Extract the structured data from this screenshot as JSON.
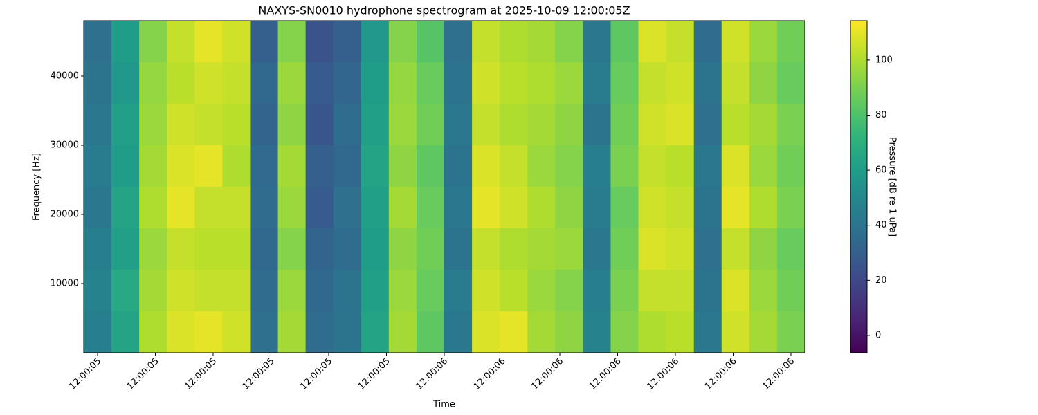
{
  "chart_data": {
    "type": "heatmap",
    "title": "NAXYS-SN0010 hydrophone spectrogram at 2025-10-09 12:00:05Z",
    "x_label": "Time",
    "y_label": "Frequency [Hz]",
    "xtick_labels": [
      "12:00:05",
      "12:00:05",
      "12:00:05",
      "12:00:05",
      "12:00:05",
      "12:00:05",
      "12:00:06",
      "12:00:06",
      "12:00:06",
      "12:00:06",
      "12:00:06",
      "12:00:06",
      "12:00:06"
    ],
    "ylim": [
      0,
      48000
    ],
    "yticks": [
      10000,
      20000,
      30000,
      40000
    ],
    "colormap": "viridis",
    "clim": [
      -6.3,
      114.3
    ],
    "cticks": [
      0,
      20,
      40,
      60,
      80,
      100
    ],
    "colorbar_label": "Pressure [dB re 1 uPa]",
    "values": [
      [
        38,
        60,
        92,
        104,
        110,
        106,
        30,
        92,
        25,
        30,
        58,
        92,
        82,
        38,
        104,
        100,
        98,
        92,
        42,
        84,
        108,
        104,
        36,
        106,
        96,
        88
      ],
      [
        40,
        58,
        95,
        102,
        106,
        104,
        34,
        96,
        28,
        33,
        60,
        95,
        86,
        40,
        106,
        102,
        100,
        96,
        44,
        86,
        104,
        106,
        40,
        104,
        94,
        86
      ],
      [
        42,
        62,
        96,
        106,
        104,
        102,
        32,
        94,
        26,
        36,
        62,
        96,
        88,
        42,
        104,
        100,
        98,
        94,
        40,
        88,
        106,
        108,
        38,
        102,
        98,
        90
      ],
      [
        44,
        60,
        98,
        108,
        110,
        100,
        35,
        98,
        30,
        34,
        64,
        94,
        84,
        40,
        108,
        104,
        96,
        92,
        46,
        90,
        104,
        102,
        42,
        108,
        96,
        88
      ],
      [
        42,
        64,
        100,
        110,
        104,
        104,
        36,
        96,
        28,
        38,
        62,
        98,
        86,
        42,
        110,
        106,
        100,
        94,
        44,
        86,
        106,
        104,
        40,
        110,
        100,
        90
      ],
      [
        46,
        62,
        96,
        104,
        102,
        102,
        34,
        92,
        32,
        36,
        60,
        94,
        88,
        40,
        104,
        100,
        98,
        96,
        42,
        88,
        108,
        106,
        38,
        104,
        94,
        86
      ],
      [
        48,
        66,
        98,
        106,
        104,
        104,
        36,
        96,
        34,
        40,
        62,
        96,
        86,
        44,
        106,
        102,
        96,
        92,
        46,
        90,
        104,
        104,
        40,
        108,
        96,
        88
      ],
      [
        46,
        64,
        100,
        108,
        110,
        106,
        38,
        98,
        36,
        40,
        64,
        98,
        84,
        42,
        108,
        110,
        98,
        94,
        48,
        92,
        100,
        102,
        42,
        106,
        98,
        90
      ]
    ]
  }
}
